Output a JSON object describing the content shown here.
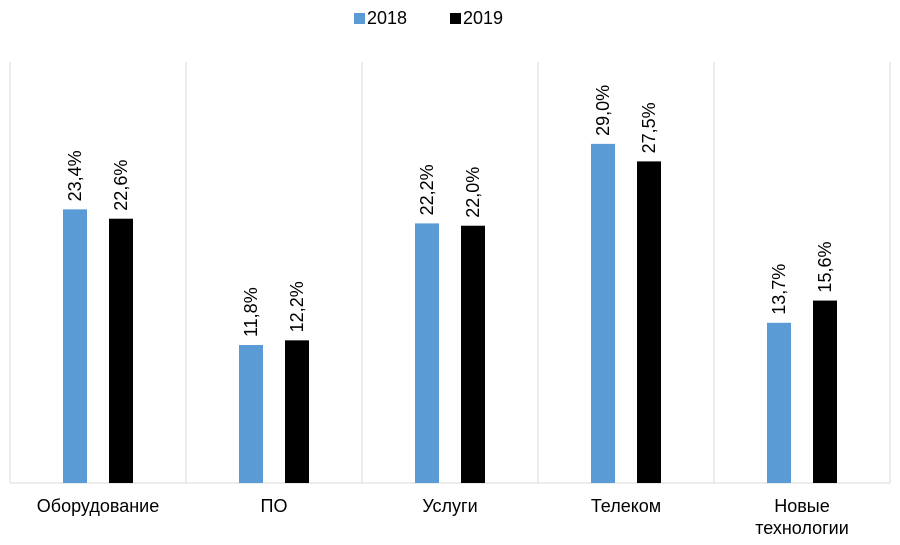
{
  "chart_data": {
    "type": "bar",
    "categories": [
      "Оборудование",
      "ПО",
      "Услуги",
      "Телеком",
      "Новые технологии"
    ],
    "series": [
      {
        "name": "2018",
        "color": "#5b9bd5",
        "values": [
          23.4,
          11.8,
          22.2,
          29.0,
          13.7
        ],
        "value_labels": [
          "23,4%",
          "11,8%",
          "22,2%",
          "29,0%",
          "13,7%"
        ]
      },
      {
        "name": "2019",
        "color": "#000000",
        "values": [
          22.6,
          12.2,
          22.0,
          27.5,
          15.6
        ],
        "value_labels": [
          "22,6%",
          "12,2%",
          "22,0%",
          "27,5%",
          "15,6%"
        ]
      }
    ],
    "ylim": [
      0,
      36
    ],
    "legend": "top"
  }
}
